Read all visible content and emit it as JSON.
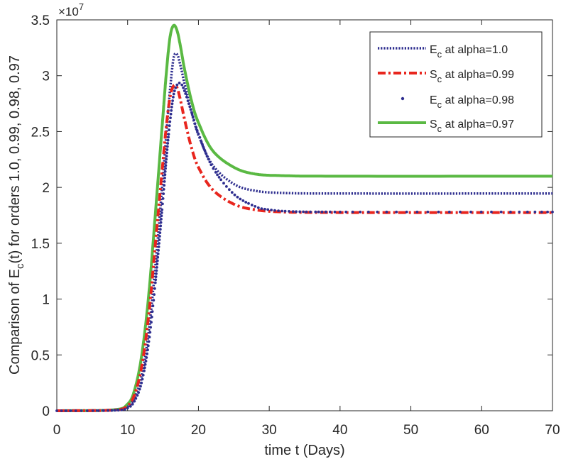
{
  "chart_data": {
    "type": "line",
    "xlabel": "time t (Days)",
    "ylabel": {
      "prefix": "Comparison of E",
      "sub": "c",
      "suffix": "(t) for orders 1.0, 0.99, 0.98, 0.97"
    },
    "exponent": {
      "base": "×10",
      "power": "7"
    },
    "xlim": [
      0,
      70
    ],
    "ylim": [
      0,
      35000000
    ],
    "x_ticks": [
      0,
      10,
      20,
      30,
      40,
      50,
      60,
      70
    ],
    "y_ticks": [
      0,
      5000000,
      10000000,
      15000000,
      20000000,
      25000000,
      30000000,
      35000000
    ],
    "x_tick_labels": [
      "0",
      "10",
      "20",
      "30",
      "40",
      "50",
      "60",
      "70"
    ],
    "y_tick_labels": [
      "0",
      "0.5",
      "1",
      "1.5",
      "2",
      "2.5",
      "3",
      "3.5"
    ],
    "grid": false,
    "legend_position": "top-right",
    "series": [
      {
        "name": {
          "main": "E",
          "sub": "c",
          "rest": " at alpha=1.0"
        },
        "style": "dotted",
        "color": "#2e2e8f",
        "points": [
          [
            0,
            0
          ],
          [
            8,
            50000
          ],
          [
            10,
            350000
          ],
          [
            11,
            1200000
          ],
          [
            12,
            3200000
          ],
          [
            13,
            7200000
          ],
          [
            14,
            13500000
          ],
          [
            15,
            21000000
          ],
          [
            15.5,
            25000000
          ],
          [
            16,
            28800000
          ],
          [
            16.5,
            31600000
          ],
          [
            17,
            31900000
          ],
          [
            17.5,
            30800000
          ],
          [
            18,
            29400000
          ],
          [
            19,
            26800000
          ],
          [
            20,
            24700000
          ],
          [
            22,
            22000000
          ],
          [
            25,
            20300000
          ],
          [
            28,
            19700000
          ],
          [
            32,
            19500000
          ],
          [
            40,
            19450000
          ],
          [
            70,
            19450000
          ]
        ]
      },
      {
        "name": {
          "main": "S",
          "sub": "c",
          "rest": " at alpha=0.99"
        },
        "style": "dashdot",
        "color": "#e8261e",
        "points": [
          [
            0,
            0
          ],
          [
            8,
            60000
          ],
          [
            10,
            450000
          ],
          [
            11,
            1500000
          ],
          [
            12,
            4000000
          ],
          [
            13,
            8700000
          ],
          [
            14,
            15500000
          ],
          [
            15,
            22400000
          ],
          [
            15.5,
            25700000
          ],
          [
            16,
            28100000
          ],
          [
            16.5,
            29100000
          ],
          [
            17,
            28900000
          ],
          [
            17.5,
            27700000
          ],
          [
            18,
            26200000
          ],
          [
            19,
            23600000
          ],
          [
            20,
            21800000
          ],
          [
            22,
            19800000
          ],
          [
            25,
            18500000
          ],
          [
            28,
            18000000
          ],
          [
            32,
            17800000
          ],
          [
            40,
            17750000
          ],
          [
            70,
            17750000
          ]
        ]
      },
      {
        "name": {
          "main": "E",
          "sub": "c",
          "rest": " at alpha=0.98"
        },
        "style": "markers",
        "color": "#2e2e8f",
        "points": [
          [
            0,
            0
          ],
          [
            8,
            30000
          ],
          [
            10,
            250000
          ],
          [
            11,
            900000
          ],
          [
            12,
            2600000
          ],
          [
            13,
            6200000
          ],
          [
            14,
            12000000
          ],
          [
            15,
            19000000
          ],
          [
            15.5,
            22800000
          ],
          [
            16,
            26000000
          ],
          [
            16.5,
            28300000
          ],
          [
            17,
            29200000
          ],
          [
            17.5,
            29300000
          ],
          [
            18,
            28700000
          ],
          [
            19,
            26800000
          ],
          [
            20,
            24800000
          ],
          [
            22,
            21800000
          ],
          [
            25,
            19400000
          ],
          [
            28,
            18300000
          ],
          [
            30,
            18000000
          ],
          [
            33,
            17850000
          ],
          [
            40,
            17800000
          ],
          [
            70,
            17800000
          ]
        ]
      },
      {
        "name": {
          "main": "S",
          "sub": "c",
          "rest": " at alpha=0.97"
        },
        "style": "solid",
        "color": "#5ab943",
        "points": [
          [
            0,
            0
          ],
          [
            8,
            80000
          ],
          [
            10,
            600000
          ],
          [
            11,
            1900000
          ],
          [
            12,
            5000000
          ],
          [
            13,
            10500000
          ],
          [
            14,
            18300000
          ],
          [
            15,
            26500000
          ],
          [
            15.5,
            30500000
          ],
          [
            16,
            33500000
          ],
          [
            16.5,
            34500000
          ],
          [
            17,
            34000000
          ],
          [
            17.5,
            32500000
          ],
          [
            18,
            30700000
          ],
          [
            19,
            27800000
          ],
          [
            20,
            25800000
          ],
          [
            22,
            23300000
          ],
          [
            25,
            21800000
          ],
          [
            28,
            21200000
          ],
          [
            32,
            21050000
          ],
          [
            40,
            21000000
          ],
          [
            70,
            21000000
          ]
        ]
      }
    ]
  }
}
